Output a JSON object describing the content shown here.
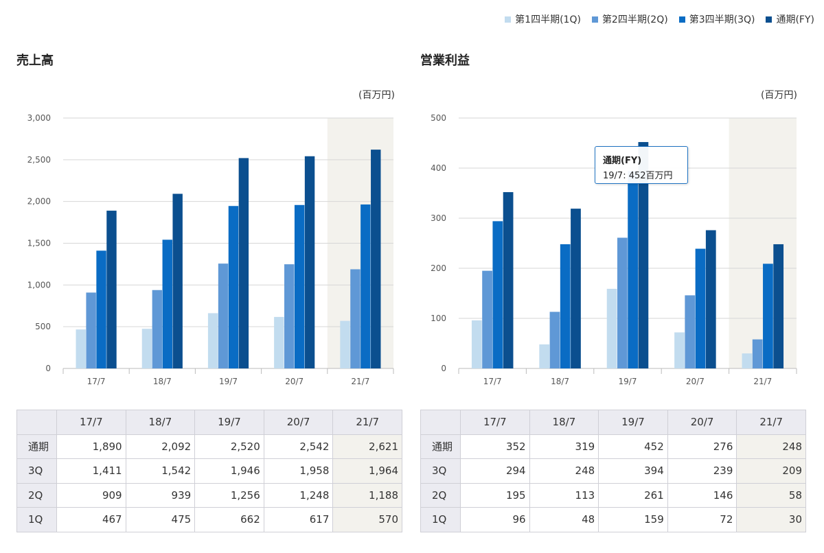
{
  "legend": [
    {
      "label": "第1四半期(1Q)",
      "color": "#c2dcef"
    },
    {
      "label": "第2四半期(2Q)",
      "color": "#5f98d6"
    },
    {
      "label": "第3四半期(3Q)",
      "color": "#0a6cc4"
    },
    {
      "label": "通期(FY)",
      "color": "#0b4f8f"
    }
  ],
  "panels": [
    {
      "title": "売上高",
      "unit": "(百万円)",
      "table": {
        "headers": [
          "",
          "17/7",
          "18/7",
          "19/7",
          "20/7",
          "21/7"
        ],
        "rows": [
          {
            "label": "通期",
            "values": [
              "1,890",
              "2,092",
              "2,520",
              "2,542",
              "2,621"
            ]
          },
          {
            "label": "3Q",
            "values": [
              "1,411",
              "1,542",
              "1,946",
              "1,958",
              "1,964"
            ]
          },
          {
            "label": "2Q",
            "values": [
              "909",
              "939",
              "1,256",
              "1,248",
              "1,188"
            ]
          },
          {
            "label": "1Q",
            "values": [
              "467",
              "475",
              "662",
              "617",
              "570"
            ]
          }
        ]
      }
    },
    {
      "title": "営業利益",
      "unit": "(百万円)",
      "tooltip": {
        "title": "通期(FY)",
        "text": "19/7: 452百万円"
      },
      "table": {
        "headers": [
          "",
          "17/7",
          "18/7",
          "19/7",
          "20/7",
          "21/7"
        ],
        "rows": [
          {
            "label": "通期",
            "values": [
              "352",
              "319",
              "452",
              "276",
              "248"
            ]
          },
          {
            "label": "3Q",
            "values": [
              "294",
              "248",
              "394",
              "239",
              "209"
            ]
          },
          {
            "label": "2Q",
            "values": [
              "195",
              "113",
              "261",
              "146",
              "58"
            ]
          },
          {
            "label": "1Q",
            "values": [
              "96",
              "48",
              "159",
              "72",
              "30"
            ]
          }
        ]
      }
    }
  ],
  "chart_data": [
    {
      "type": "bar",
      "title": "売上高",
      "ylabel": "(百万円)",
      "categories": [
        "17/7",
        "18/7",
        "19/7",
        "20/7",
        "21/7"
      ],
      "ylim": [
        0,
        3000
      ],
      "yticks": [
        "0",
        "500",
        "1,000",
        "1,500",
        "2,000",
        "2,500",
        "3,000"
      ],
      "highlight_category": "21/7",
      "grid": true,
      "legend_position": "top-right",
      "series": [
        {
          "name": "第1四半期(1Q)",
          "values": [
            467,
            475,
            662,
            617,
            570
          ]
        },
        {
          "name": "第2四半期(2Q)",
          "values": [
            909,
            939,
            1256,
            1248,
            1188
          ]
        },
        {
          "name": "第3四半期(3Q)",
          "values": [
            1411,
            1542,
            1946,
            1958,
            1964
          ]
        },
        {
          "name": "通期(FY)",
          "values": [
            1890,
            2092,
            2520,
            2542,
            2621
          ]
        }
      ]
    },
    {
      "type": "bar",
      "title": "営業利益",
      "ylabel": "(百万円)",
      "categories": [
        "17/7",
        "18/7",
        "19/7",
        "20/7",
        "21/7"
      ],
      "ylim": [
        0,
        500
      ],
      "yticks": [
        "0",
        "100",
        "200",
        "300",
        "400",
        "500"
      ],
      "highlight_category": "21/7",
      "grid": true,
      "legend_position": "top-right",
      "series": [
        {
          "name": "第1四半期(1Q)",
          "values": [
            96,
            48,
            159,
            72,
            30
          ]
        },
        {
          "name": "第2四半期(2Q)",
          "values": [
            195,
            113,
            261,
            146,
            58
          ]
        },
        {
          "name": "第3四半期(3Q)",
          "values": [
            294,
            248,
            394,
            239,
            209
          ]
        },
        {
          "name": "通期(FY)",
          "values": [
            352,
            319,
            452,
            276,
            248
          ]
        }
      ]
    }
  ]
}
